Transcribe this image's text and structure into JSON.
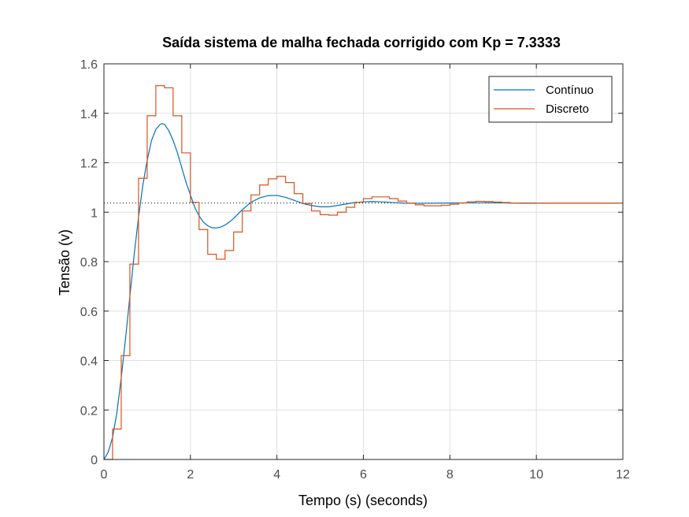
{
  "chart_data": {
    "type": "line",
    "title": "Saída sistema de malha fechada corrigido com Kp = 7.3333",
    "xlabel": "Tempo (s) (seconds)",
    "ylabel": "Tensão (v)",
    "xlim": [
      0,
      12
    ],
    "ylim": [
      0,
      1.6
    ],
    "xticks": [
      "0",
      "2",
      "4",
      "6",
      "8",
      "10",
      "12"
    ],
    "yticks": [
      "0",
      "0.2",
      "0.4",
      "0.6",
      "0.8",
      "1",
      "1.2",
      "1.4",
      "1.6"
    ],
    "grid": true,
    "legend_position": "top-right",
    "reference_line": {
      "y": 1.037,
      "style": "dotted"
    },
    "series": [
      {
        "name": "Contínuo",
        "kind": "line",
        "color": "#0072BD",
        "x": [
          0,
          0.1,
          0.2,
          0.3,
          0.4,
          0.5,
          0.6,
          0.7,
          0.8,
          0.9,
          1.0,
          1.1,
          1.2,
          1.3,
          1.35,
          1.4,
          1.5,
          1.6,
          1.7,
          1.8,
          1.9,
          2.0,
          2.1,
          2.2,
          2.3,
          2.4,
          2.5,
          2.6,
          2.7,
          2.8,
          2.9,
          3.0,
          3.2,
          3.4,
          3.6,
          3.8,
          4.0,
          4.2,
          4.4,
          4.6,
          4.8,
          5.0,
          5.2,
          5.4,
          5.6,
          5.8,
          6.0,
          6.2,
          6.4,
          6.6,
          6.8,
          7.0,
          7.5,
          8.0,
          8.5,
          9.0,
          9.5,
          10.0,
          11.0,
          12.0
        ],
        "y": [
          0,
          0.03,
          0.09,
          0.19,
          0.33,
          0.49,
          0.66,
          0.83,
          0.98,
          1.11,
          1.21,
          1.29,
          1.335,
          1.355,
          1.358,
          1.355,
          1.33,
          1.29,
          1.24,
          1.18,
          1.12,
          1.07,
          1.02,
          0.985,
          0.96,
          0.945,
          0.937,
          0.936,
          0.94,
          0.948,
          0.96,
          0.975,
          1.01,
          1.04,
          1.058,
          1.067,
          1.068,
          1.06,
          1.048,
          1.035,
          1.027,
          1.022,
          1.022,
          1.027,
          1.033,
          1.039,
          1.042,
          1.043,
          1.042,
          1.04,
          1.038,
          1.036,
          1.036,
          1.037,
          1.038,
          1.038,
          1.037,
          1.037,
          1.037,
          1.037
        ]
      },
      {
        "name": "Discreto",
        "kind": "stairs",
        "color": "#D95319",
        "x": [
          0,
          0.2,
          0.4,
          0.6,
          0.8,
          1.0,
          1.2,
          1.4,
          1.6,
          1.8,
          2.0,
          2.2,
          2.4,
          2.6,
          2.8,
          3.0,
          3.2,
          3.4,
          3.6,
          3.8,
          4.0,
          4.2,
          4.4,
          4.6,
          4.8,
          5.0,
          5.2,
          5.4,
          5.6,
          5.8,
          6.0,
          6.2,
          6.4,
          6.6,
          6.8,
          7.0,
          7.2,
          7.4,
          7.6,
          7.8,
          8.0,
          8.2,
          8.4,
          8.6,
          8.8,
          9.0,
          9.2,
          9.4,
          9.6,
          9.8,
          10.0,
          12.0
        ],
        "y": [
          0,
          0.123,
          0.42,
          0.79,
          1.137,
          1.39,
          1.512,
          1.503,
          1.39,
          1.24,
          1.04,
          0.93,
          0.83,
          0.81,
          0.845,
          0.92,
          1.005,
          1.07,
          1.11,
          1.135,
          1.145,
          1.12,
          1.075,
          1.035,
          1.005,
          0.99,
          0.988,
          1.0,
          1.02,
          1.04,
          1.055,
          1.062,
          1.062,
          1.055,
          1.045,
          1.037,
          1.03,
          1.026,
          1.026,
          1.028,
          1.032,
          1.037,
          1.042,
          1.044,
          1.043,
          1.041,
          1.039,
          1.037,
          1.036,
          1.036,
          1.037,
          1.037
        ]
      }
    ]
  }
}
